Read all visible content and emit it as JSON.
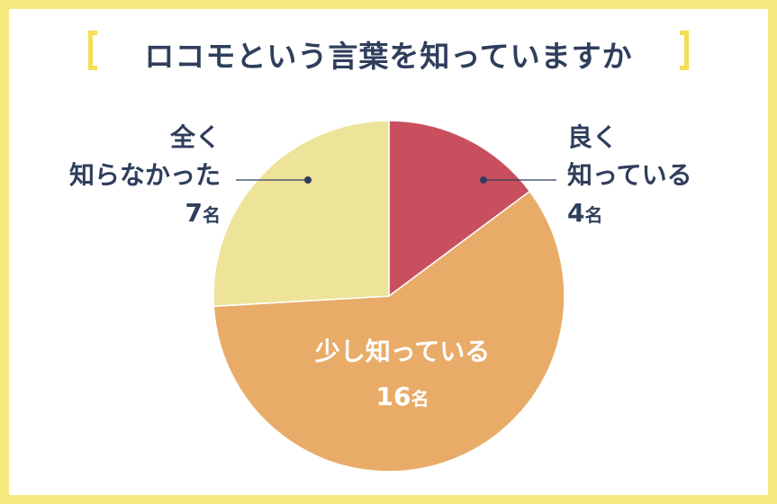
{
  "title": "ロコモという言葉を知っていますか",
  "chart_data": {
    "type": "pie",
    "title": "ロコモという言葉を知っていますか",
    "unit": "名",
    "slices": [
      {
        "label": "良く知っている",
        "value": 4,
        "color": "#c8505e"
      },
      {
        "label": "少し知っている",
        "value": 16,
        "color": "#e8ac68"
      },
      {
        "label": "全く知らなかった",
        "value": 7,
        "color": "#ede49a"
      }
    ],
    "start_angle_deg": 0,
    "direction": "clockwise"
  },
  "labels": {
    "well_line1": "良く",
    "well_line2": "知っている",
    "well_count": "4",
    "little_line1": "少し知っている",
    "little_count": "16",
    "none_line1": "全く",
    "none_line2": "知らなかった",
    "none_count": "7",
    "unit": "名"
  }
}
